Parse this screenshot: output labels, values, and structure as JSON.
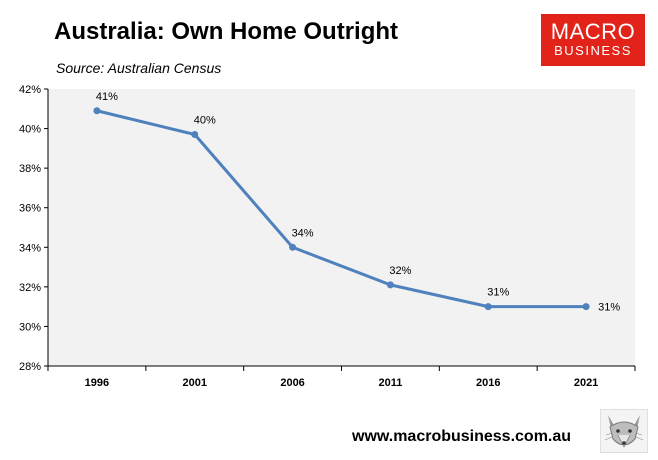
{
  "header": {
    "title": "Australia: Own Home Outright",
    "subtitle": "Source: Australian Census"
  },
  "logo": {
    "line1": "MACRO",
    "line2": "BUSINESS",
    "color": "#e2231a"
  },
  "footer": {
    "website": "www.macrobusiness.com.au"
  },
  "chart_data": {
    "type": "line",
    "title": "Australia: Own Home Outright",
    "subtitle": "Source: Australian Census",
    "categories": [
      "1996",
      "2001",
      "2006",
      "2011",
      "2016",
      "2021"
    ],
    "series": [
      {
        "values": [
          40.9,
          39.7,
          34.0,
          32.1,
          31.0,
          31.0
        ],
        "data_labels": [
          "41%",
          "40%",
          "34%",
          "32%",
          "31%",
          "31%"
        ],
        "color": "#4f81bd"
      }
    ],
    "ylim": [
      28,
      42
    ],
    "yticks": [
      28,
      30,
      32,
      34,
      36,
      38,
      40,
      42
    ],
    "ytick_labels": [
      "28%",
      "30%",
      "32%",
      "34%",
      "36%",
      "38%",
      "40%",
      "42%"
    ],
    "xlabel": "",
    "ylabel": "",
    "grid": false,
    "legend": "none",
    "plot_background": "#f2f2f2"
  }
}
